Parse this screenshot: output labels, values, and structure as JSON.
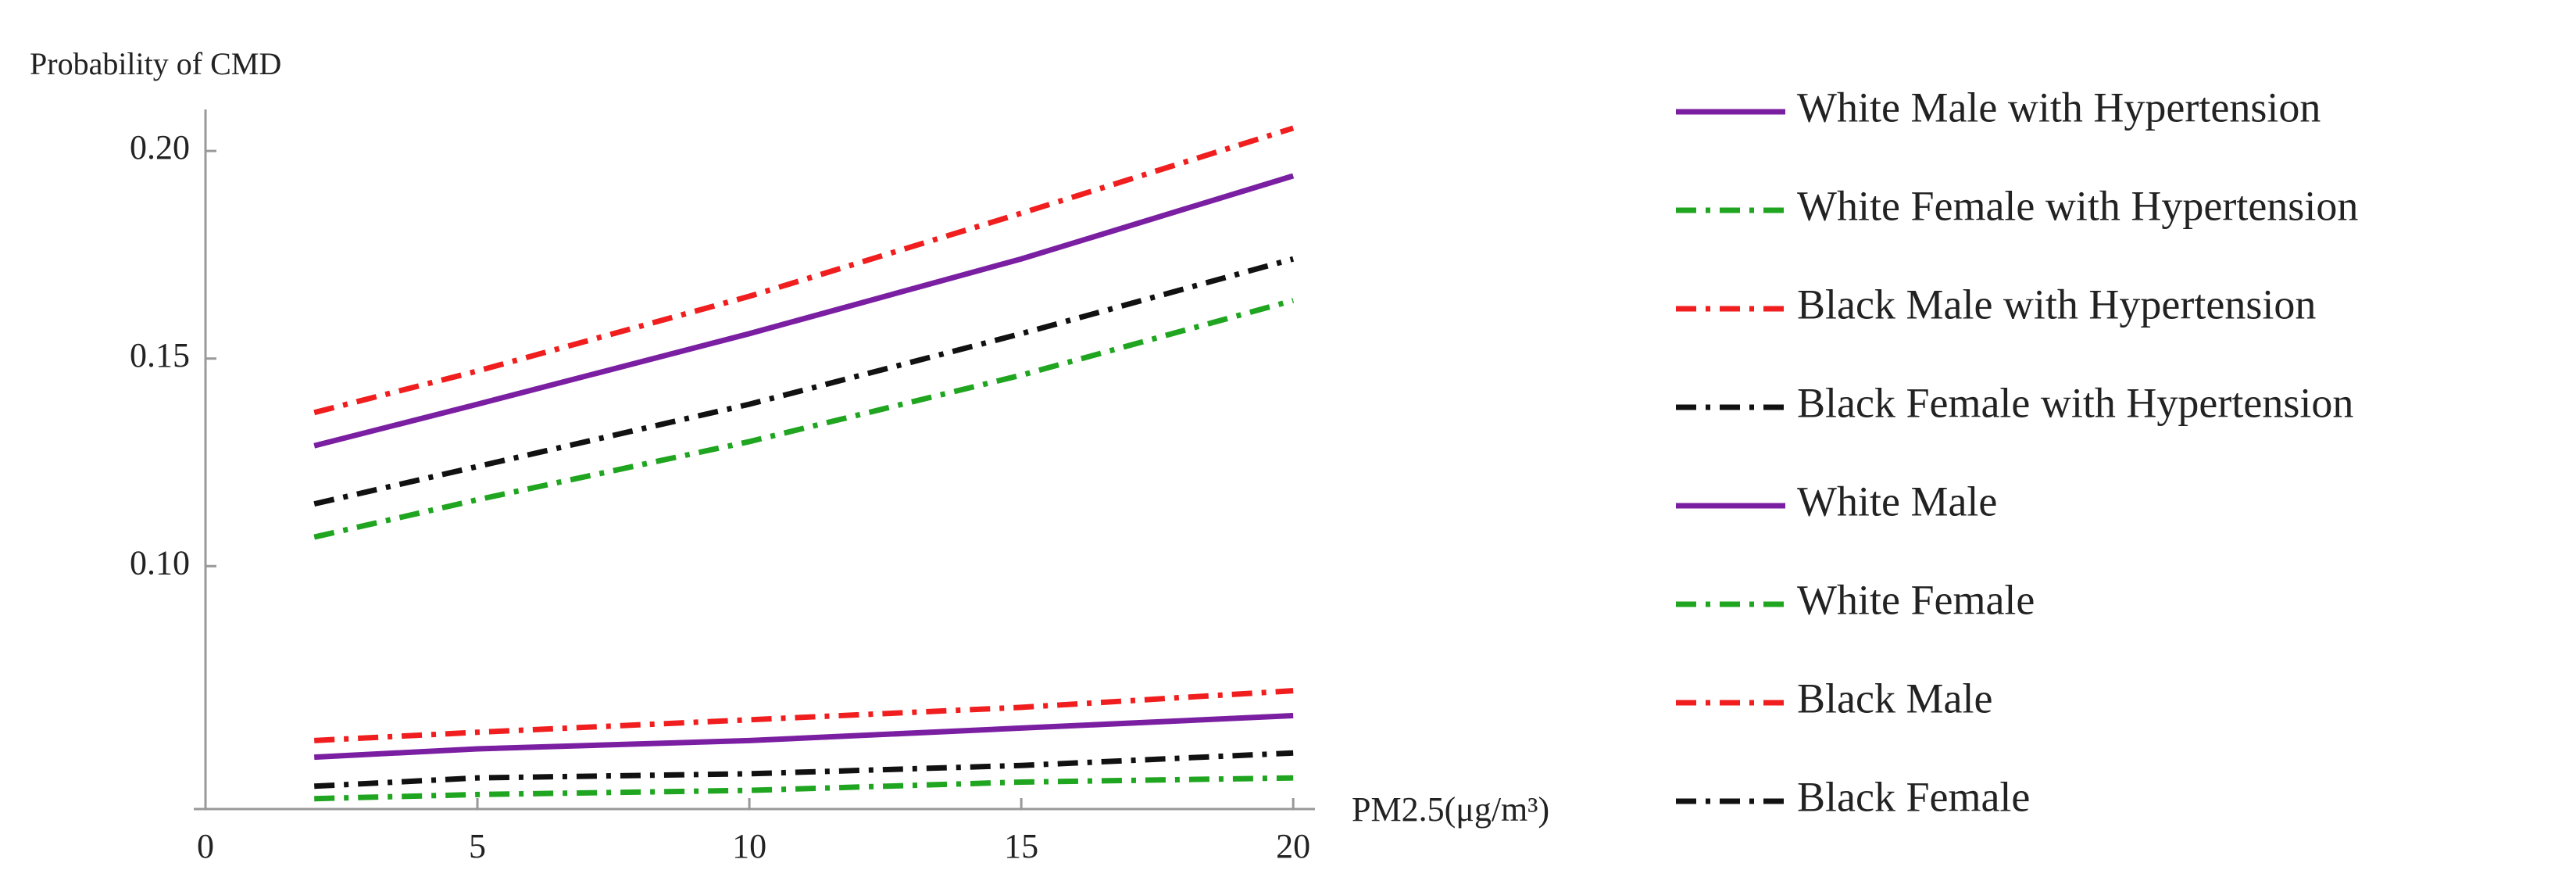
{
  "chart_data": {
    "type": "line",
    "y_label": "Probability of CMD",
    "x_label": "PM2.5(μg/m³)",
    "x": [
      2,
      5,
      10,
      15,
      20
    ],
    "xlim": [
      0,
      20.4
    ],
    "xticks": [
      0,
      5,
      10,
      15,
      20
    ],
    "ylim": [
      0.0415,
      0.21
    ],
    "yticks": [
      {
        "value": 0.1,
        "label": "0.10"
      },
      {
        "value": 0.15,
        "label": "0.15"
      },
      {
        "value": 0.2,
        "label": "0.20"
      }
    ],
    "series": [
      {
        "name": "White Male with Hypertension",
        "color": "#7b1fa2",
        "dash": "solid",
        "values": [
          0.129,
          0.139,
          0.156,
          0.174,
          0.194
        ]
      },
      {
        "name": "White Female with Hypertension",
        "color": "#1fa51f",
        "dash": "dashdot",
        "values": [
          0.107,
          0.116,
          0.13,
          0.146,
          0.164
        ]
      },
      {
        "name": "Black Male with Hypertension",
        "color": "#f01e1e",
        "dash": "dashdot",
        "values": [
          0.137,
          0.147,
          0.165,
          0.185,
          0.2055
        ]
      },
      {
        "name": "Black Female with Hypertension",
        "color": "#111111",
        "dash": "dashdot",
        "values": [
          0.115,
          0.124,
          0.139,
          0.156,
          0.174
        ]
      },
      {
        "name": "White Male",
        "color": "#7b1fa2",
        "dash": "solid",
        "values": [
          0.054,
          0.056,
          0.058,
          0.061,
          0.064
        ]
      },
      {
        "name": "White Female",
        "color": "#1fa51f",
        "dash": "dashdot",
        "values": [
          0.044,
          0.045,
          0.046,
          0.048,
          0.049
        ]
      },
      {
        "name": "Black Male",
        "color": "#f01e1e",
        "dash": "dashdot",
        "values": [
          0.058,
          0.06,
          0.063,
          0.066,
          0.07
        ]
      },
      {
        "name": "Black Female",
        "color": "#111111",
        "dash": "dashdot",
        "values": [
          0.047,
          0.049,
          0.05,
          0.052,
          0.055
        ]
      }
    ]
  }
}
